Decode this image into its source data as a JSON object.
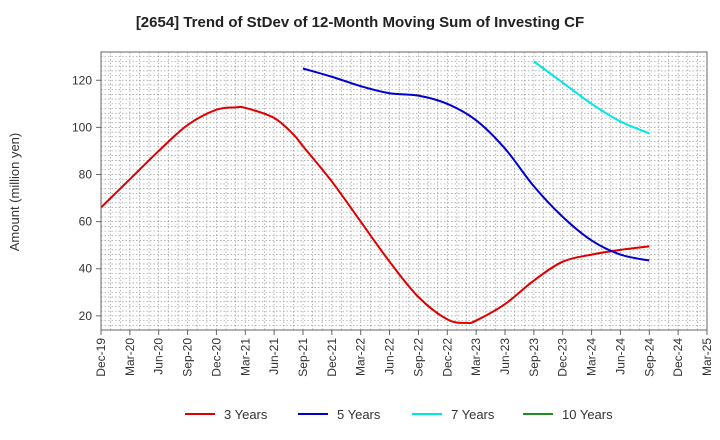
{
  "chart_data": {
    "type": "line",
    "title": "[2654]  Trend of StDev of 12-Month Moving Sum of Investing CF",
    "xlabel": "",
    "ylabel": "Amount (million yen)",
    "ylim": [
      14,
      132
    ],
    "yticks": [
      20,
      40,
      60,
      80,
      100,
      120
    ],
    "xlim": [
      "2019-12",
      "2025-03"
    ],
    "categories": [
      "Dec-19",
      "Mar-20",
      "Jun-20",
      "Sep-20",
      "Dec-20",
      "Mar-21",
      "Jun-21",
      "Sep-21",
      "Dec-21",
      "Mar-22",
      "Jun-22",
      "Sep-22",
      "Dec-22",
      "Mar-23",
      "Jun-23",
      "Sep-23",
      "Dec-23",
      "Mar-24",
      "Jun-24",
      "Sep-24",
      "Dec-24",
      "Mar-25"
    ],
    "grid": true,
    "legend_position": "bottom",
    "series": [
      {
        "name": "3 Years",
        "color": "#dd0000",
        "points": [
          [
            "2019-12",
            66
          ],
          [
            "2020-03",
            78
          ],
          [
            "2020-06",
            90
          ],
          [
            "2020-09",
            101
          ],
          [
            "2020-12",
            107.5
          ],
          [
            "2021-02",
            108.5
          ],
          [
            "2021-03",
            108.3
          ],
          [
            "2021-06",
            104
          ],
          [
            "2021-08",
            97
          ],
          [
            "2021-09",
            92
          ],
          [
            "2021-12",
            77
          ],
          [
            "2022-03",
            60
          ],
          [
            "2022-06",
            43
          ],
          [
            "2022-09",
            28
          ],
          [
            "2022-12",
            18.5
          ],
          [
            "2023-02",
            17
          ],
          [
            "2023-03",
            18
          ],
          [
            "2023-06",
            25
          ],
          [
            "2023-09",
            35
          ],
          [
            "2023-12",
            43
          ],
          [
            "2024-03",
            46
          ],
          [
            "2024-06",
            48
          ],
          [
            "2024-09",
            49.5
          ]
        ]
      },
      {
        "name": "5 Years",
        "color": "#0000cc",
        "points": [
          [
            "2021-09",
            125
          ],
          [
            "2021-12",
            121.5
          ],
          [
            "2022-03",
            117.5
          ],
          [
            "2022-06",
            114.5
          ],
          [
            "2022-09",
            113.5
          ],
          [
            "2022-12",
            110
          ],
          [
            "2023-03",
            103
          ],
          [
            "2023-06",
            91
          ],
          [
            "2023-09",
            75
          ],
          [
            "2023-12",
            62
          ],
          [
            "2024-03",
            52
          ],
          [
            "2024-06",
            46
          ],
          [
            "2024-09",
            43.5
          ]
        ]
      },
      {
        "name": "7 Years",
        "color": "#00e5e5",
        "points": [
          [
            "2023-09",
            128
          ],
          [
            "2023-12",
            119
          ],
          [
            "2024-03",
            110
          ],
          [
            "2024-06",
            102.5
          ],
          [
            "2024-09",
            97.5
          ]
        ]
      },
      {
        "name": "10 Years",
        "color": "#228b22",
        "points": []
      }
    ]
  }
}
